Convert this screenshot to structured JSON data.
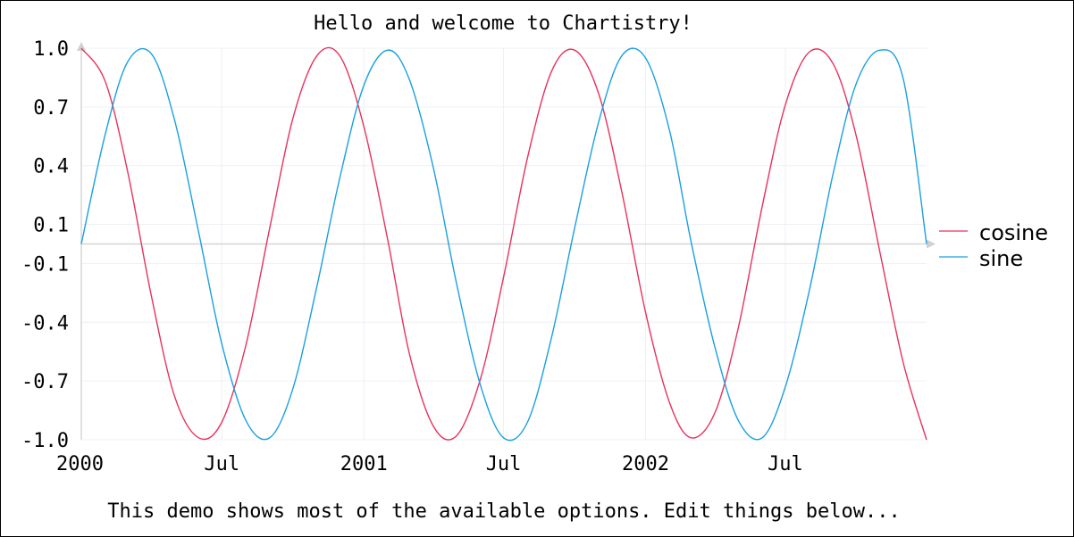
{
  "chart_data": {
    "type": "line",
    "title": "Hello and welcome to Chartistry!",
    "subtitle": "This demo shows most of the available options. Edit things below...",
    "xlabel": "",
    "ylabel": "",
    "xlim": [
      "2000-01-01",
      "2002-12-31"
    ],
    "ylim": [
      -1.0,
      1.0
    ],
    "x_ticks": [
      {
        "date": "2000-01-01",
        "label": "2000"
      },
      {
        "date": "2000-07-01",
        "label": "Jul"
      },
      {
        "date": "2001-01-01",
        "label": "2001"
      },
      {
        "date": "2001-07-01",
        "label": "Jul"
      },
      {
        "date": "2002-01-01",
        "label": "2002"
      },
      {
        "date": "2002-07-01",
        "label": "Jul"
      }
    ],
    "y_ticks": [
      1.0,
      0.7,
      0.4,
      0.1,
      -0.1,
      -0.4,
      -0.7,
      -1.0
    ],
    "y_tick_labels": [
      "1.0",
      "0.7",
      "0.4",
      "0.1",
      "-0.1",
      "-0.4",
      "-0.7",
      "-1.0"
    ],
    "grid": true,
    "legend": {
      "placement": "right"
    },
    "series": [
      {
        "name": "cosine",
        "color": "#e8325c",
        "x": [
          "2000-01-01",
          "2000-02-01",
          "2000-03-01",
          "2000-04-01",
          "2000-05-01",
          "2000-06-01",
          "2000-07-01",
          "2000-08-01",
          "2000-09-01",
          "2000-10-01",
          "2000-11-01",
          "2000-12-01",
          "2001-01-01",
          "2001-02-01",
          "2001-03-01",
          "2001-04-01",
          "2001-05-01",
          "2001-06-01",
          "2001-07-01",
          "2001-08-01",
          "2001-09-01",
          "2001-10-01",
          "2001-11-01",
          "2001-12-01",
          "2002-01-01",
          "2002-02-01",
          "2002-03-01",
          "2002-04-01",
          "2002-05-01",
          "2002-06-01",
          "2002-07-01",
          "2002-08-01",
          "2002-09-01",
          "2002-10-01",
          "2002-11-01",
          "2002-12-01",
          "2002-12-31"
        ],
        "y": [
          1.0,
          0.83,
          0.37,
          -0.27,
          -0.78,
          -0.99,
          -0.91,
          -0.52,
          0.08,
          0.64,
          0.96,
          0.96,
          0.6,
          0.02,
          -0.56,
          -0.93,
          -0.98,
          -0.69,
          -0.17,
          0.44,
          0.88,
          0.99,
          0.77,
          0.27,
          -0.35,
          -0.81,
          -0.99,
          -0.86,
          -0.43,
          0.19,
          0.71,
          0.98,
          0.92,
          0.55,
          -0.05,
          -0.61,
          -1.0
        ]
      },
      {
        "name": "sine",
        "color": "#1aa0e0",
        "x": [
          "2000-01-01",
          "2000-02-01",
          "2000-03-01",
          "2000-04-01",
          "2000-05-01",
          "2000-06-01",
          "2000-07-01",
          "2000-08-01",
          "2000-09-01",
          "2000-10-01",
          "2000-11-01",
          "2000-12-01",
          "2001-01-01",
          "2001-02-01",
          "2001-03-01",
          "2001-04-01",
          "2001-05-01",
          "2001-06-01",
          "2001-07-01",
          "2001-08-01",
          "2001-09-01",
          "2001-10-01",
          "2001-11-01",
          "2001-12-01",
          "2002-01-01",
          "2002-02-01",
          "2002-03-01",
          "2002-04-01",
          "2002-05-01",
          "2002-06-01",
          "2002-07-01",
          "2002-08-01",
          "2002-09-01",
          "2002-10-01",
          "2002-11-01",
          "2002-12-01",
          "2002-12-31"
        ],
        "y": [
          0.0,
          0.56,
          0.93,
          0.97,
          0.63,
          0.06,
          -0.51,
          -0.9,
          -0.99,
          -0.74,
          -0.22,
          0.34,
          0.81,
          0.99,
          0.84,
          0.39,
          -0.2,
          -0.72,
          -0.99,
          -0.91,
          -0.48,
          0.08,
          0.62,
          0.96,
          0.95,
          0.58,
          0.01,
          -0.53,
          -0.9,
          -0.99,
          -0.73,
          -0.24,
          0.36,
          0.82,
          0.99,
          0.84,
          0.0
        ]
      }
    ]
  }
}
